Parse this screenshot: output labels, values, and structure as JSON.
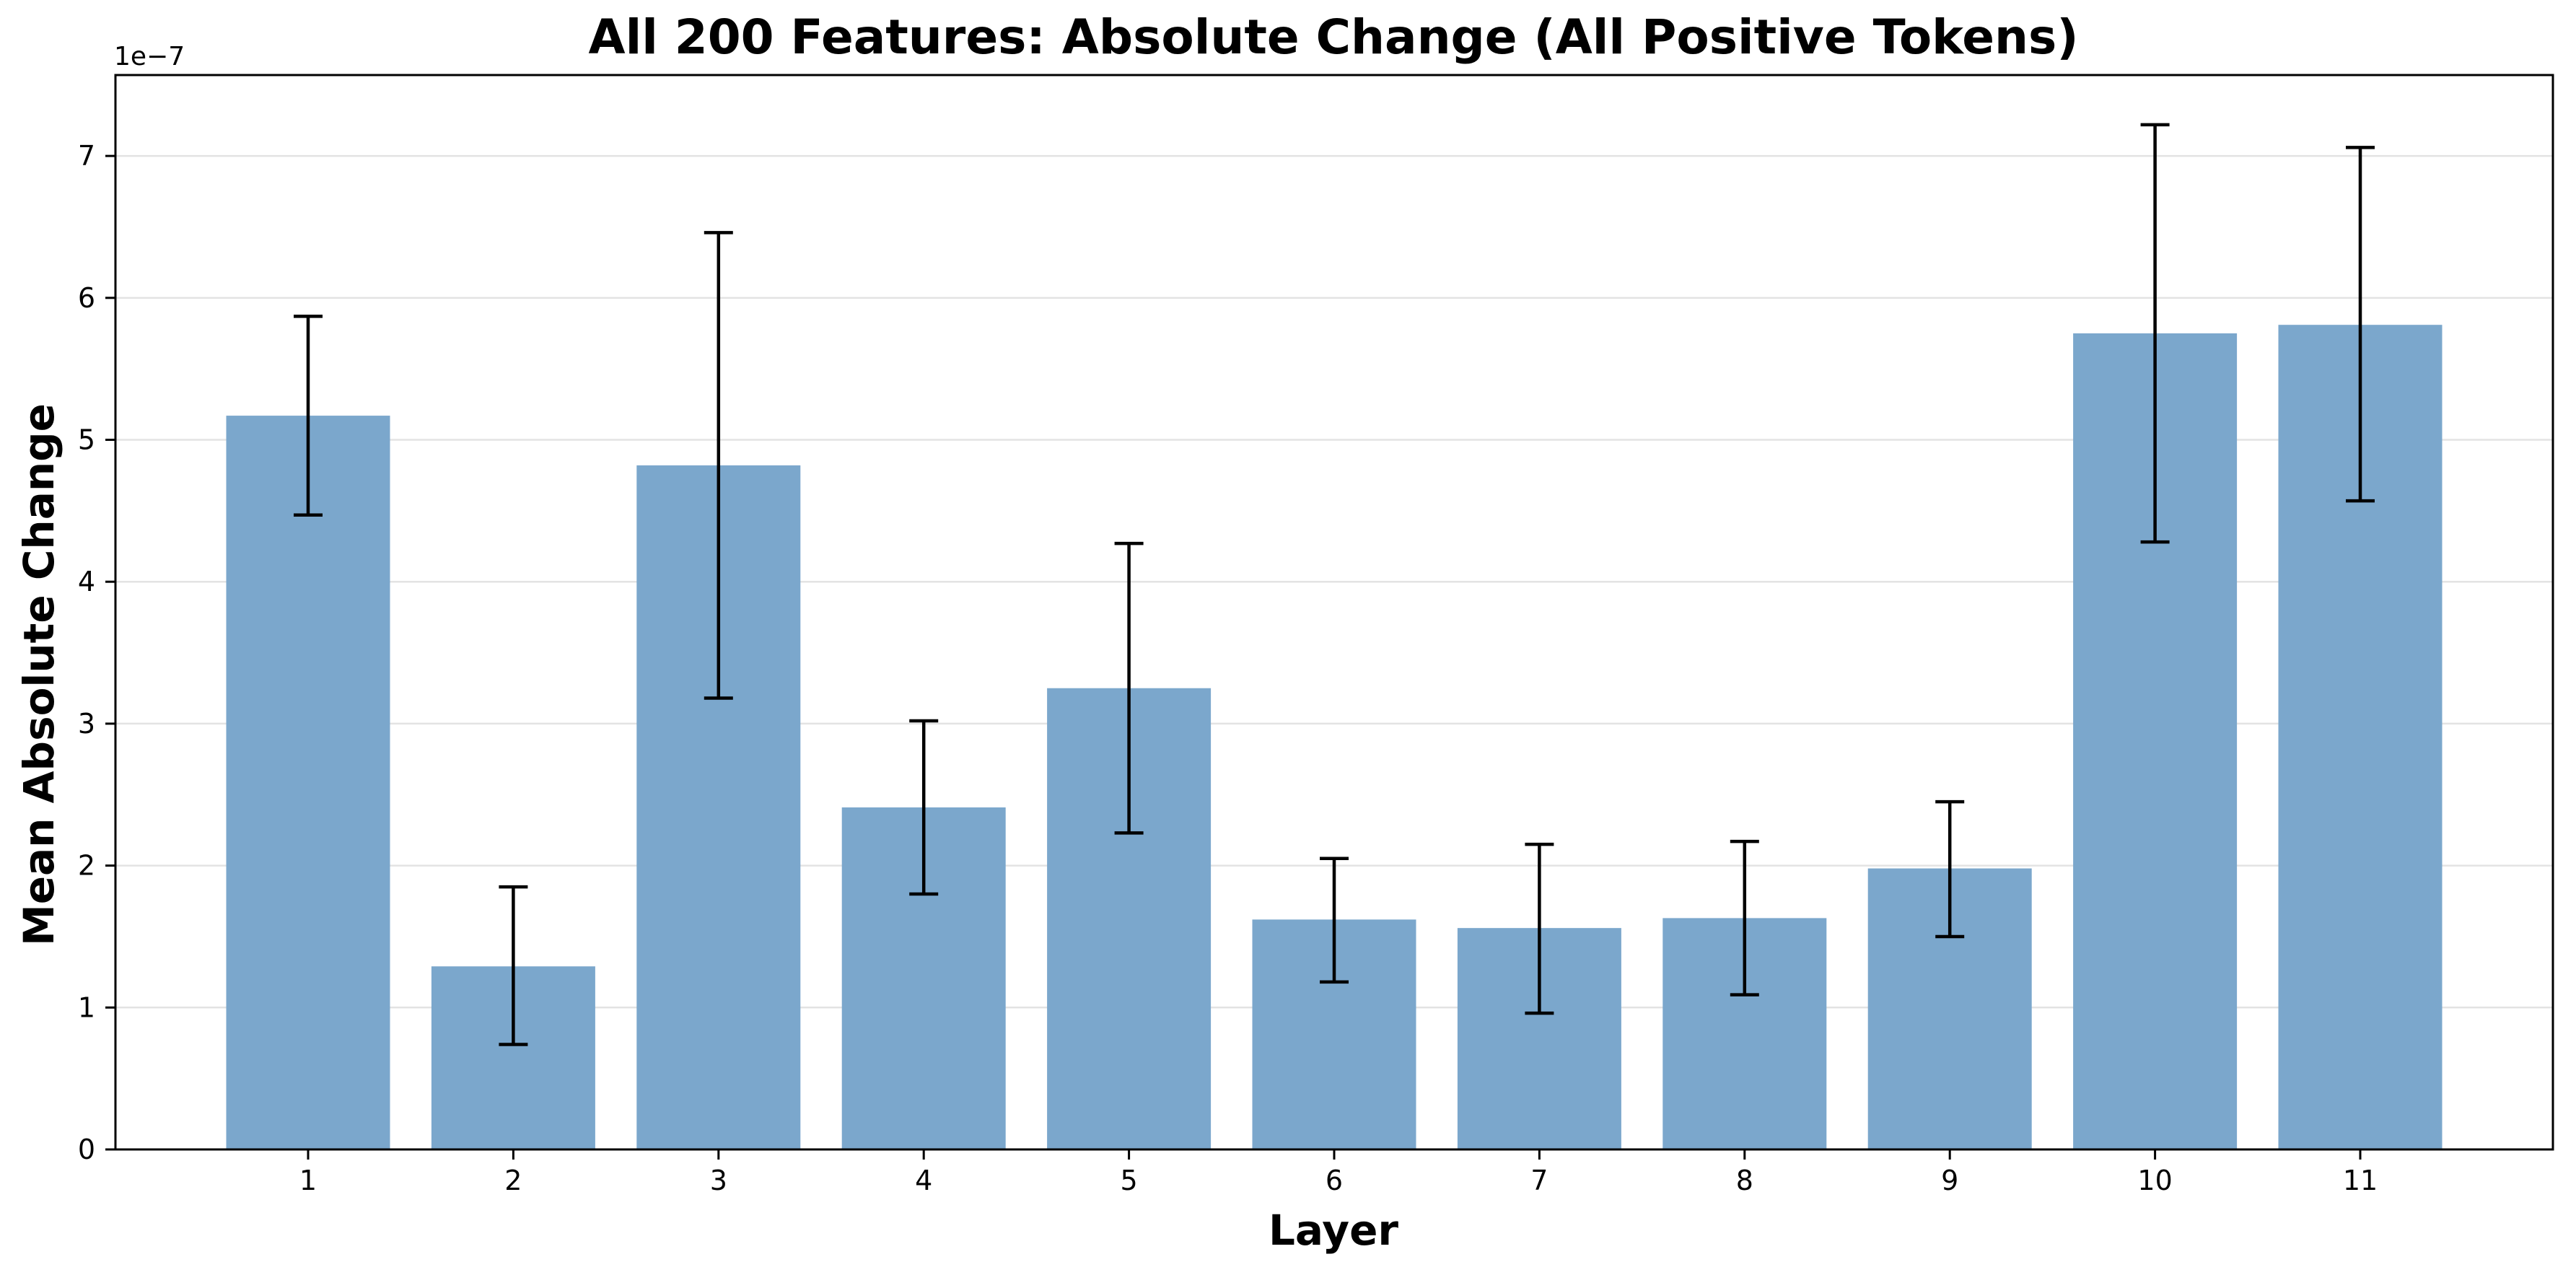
{
  "chart_data": {
    "type": "bar",
    "title": "All 200 Features: Absolute Change (All Positive Tokens)",
    "xlabel": "Layer",
    "ylabel": "Mean Absolute Change",
    "y_offset_label": "1e−7",
    "categories": [
      "1",
      "2",
      "3",
      "4",
      "5",
      "6",
      "7",
      "8",
      "9",
      "10",
      "11"
    ],
    "values": [
      5.17,
      1.29,
      4.82,
      2.41,
      3.25,
      1.62,
      1.56,
      1.63,
      1.98,
      5.75,
      5.81
    ],
    "error_low": [
      4.47,
      0.74,
      3.18,
      1.8,
      2.23,
      1.18,
      0.96,
      1.09,
      1.5,
      4.28,
      4.57
    ],
    "error_high": [
      5.87,
      1.85,
      6.46,
      3.02,
      4.27,
      2.05,
      2.15,
      2.17,
      2.45,
      7.22,
      7.06
    ],
    "value_scale": "1e-7",
    "ylim": [
      0,
      7.57
    ],
    "yticks": [
      "0",
      "1",
      "2",
      "3",
      "4",
      "5",
      "6",
      "7"
    ],
    "grid": "horizontal",
    "bar_color": "#7ba7cc",
    "error_bar_color": "#000000"
  }
}
